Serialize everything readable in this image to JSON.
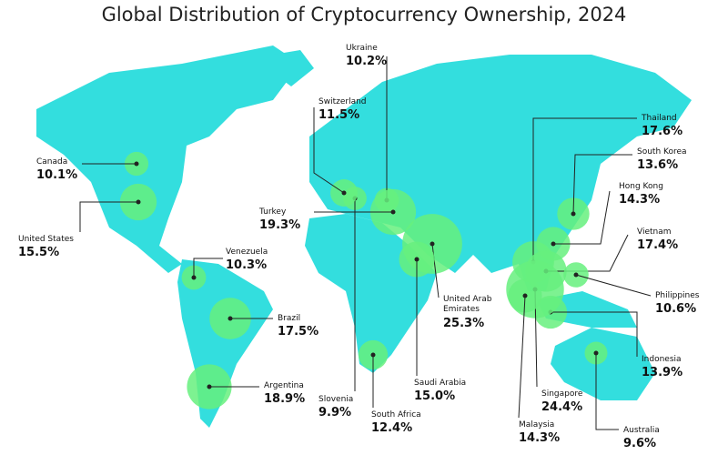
{
  "title": "Global Distribution of Cryptocurrency Ownership, 2024",
  "countries": [
    {
      "name": "Canada",
      "value": 10.1,
      "label": "10.1%"
    },
    {
      "name": "United States",
      "value": 15.5,
      "label": "15.5%"
    },
    {
      "name": "Venezuela",
      "value": 10.3,
      "label": "10.3%"
    },
    {
      "name": "Brazil",
      "value": 17.5,
      "label": "17.5%"
    },
    {
      "name": "Argentina",
      "value": 18.9,
      "label": "18.9%"
    },
    {
      "name": "Slovenia",
      "value": 9.9,
      "label": "9.9%"
    },
    {
      "name": "South Africa",
      "value": 12.4,
      "label": "12.4%"
    },
    {
      "name": "Switzerland",
      "value": 11.5,
      "label": "11.5%"
    },
    {
      "name": "Ukraine",
      "value": 10.2,
      "label": "10.2%"
    },
    {
      "name": "Turkey",
      "value": 19.3,
      "label": "19.3%"
    },
    {
      "name": "United Arab Emirates",
      "value": 25.3,
      "label": "25.3%"
    },
    {
      "name": "Saudi Arabia",
      "value": 15.0,
      "label": "15.0%"
    },
    {
      "name": "Thailand",
      "value": 17.6,
      "label": "17.6%"
    },
    {
      "name": "South Korea",
      "value": 13.6,
      "label": "13.6%"
    },
    {
      "name": "Hong Kong",
      "value": 14.3,
      "label": "14.3%"
    },
    {
      "name": "Vietnam",
      "value": 17.4,
      "label": "17.4%"
    },
    {
      "name": "Philippines",
      "value": 10.6,
      "label": "10.6%"
    },
    {
      "name": "Indonesia",
      "value": 13.9,
      "label": "13.9%"
    },
    {
      "name": "Singapore",
      "value": 24.4,
      "label": "24.4%"
    },
    {
      "name": "Malaysia",
      "value": 14.3,
      "label": "14.3%"
    },
    {
      "name": "Australia",
      "value": 9.6,
      "label": "9.6%"
    }
  ]
}
